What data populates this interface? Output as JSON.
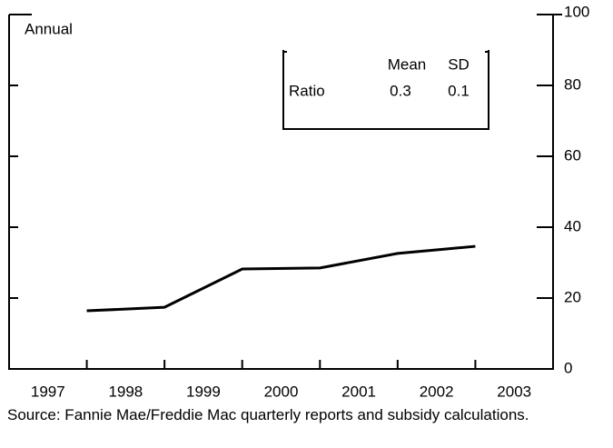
{
  "chart_data": {
    "type": "line",
    "annotation": "Annual",
    "categories": [
      "1997",
      "1998",
      "1999",
      "2000",
      "2001",
      "2002",
      "2003"
    ],
    "series": [
      {
        "name": "Ratio",
        "color": "#000000",
        "values": [
          16.4,
          17.4,
          28.2,
          28.5,
          32.6,
          34.6,
          null
        ]
      }
    ],
    "ylim": [
      0,
      100
    ],
    "yticks": [
      0,
      20,
      40,
      60,
      80,
      100
    ],
    "y_axis_side": "right",
    "inset_table": {
      "header": [
        "Mean",
        "SD"
      ],
      "rows": [
        [
          "Ratio",
          "0.3",
          "0.1"
        ]
      ]
    },
    "source": "Source: Fannie Mae/Freddie Mac quarterly reports and subsidy calculations."
  }
}
